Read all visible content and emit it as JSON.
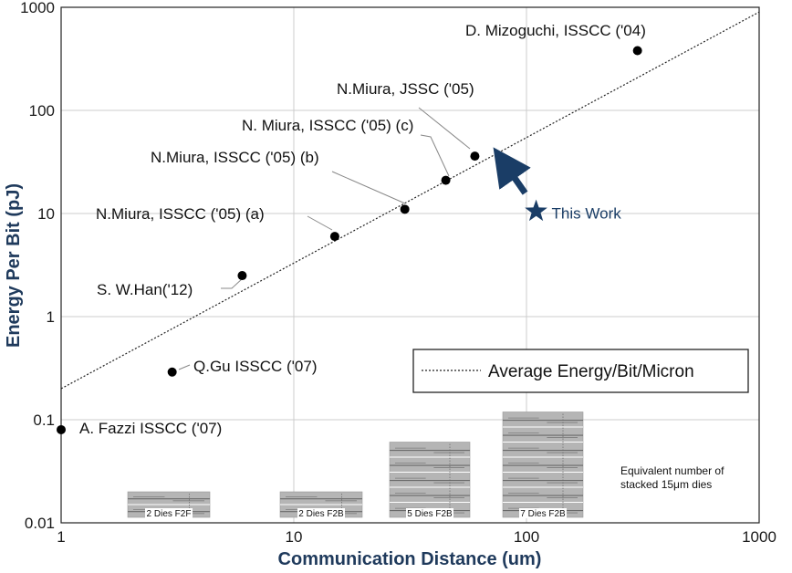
{
  "chart_data": {
    "type": "scatter",
    "xscale": "log",
    "yscale": "log",
    "xlim": [
      1,
      1000
    ],
    "ylim": [
      0.01,
      1000
    ],
    "grid": true,
    "xlabel": "Communication Distance (um)",
    "ylabel": "Energy Per Bit (pJ)",
    "xticks": [
      "1",
      "10",
      "100",
      "1000"
    ],
    "yticks": [
      "0.01",
      "0.1",
      "1",
      "10",
      "100",
      "1000"
    ],
    "points": [
      {
        "label": "A. Fazzi ISSCC ('07)",
        "x": 1,
        "y": 0.08
      },
      {
        "label": "Q.Gu ISSCC ('07)",
        "x": 3,
        "y": 0.29
      },
      {
        "label": "S. W.Han('12)",
        "x": 6,
        "y": 2.5
      },
      {
        "label": "N.Miura, ISSCC ('05) (a)",
        "x": 15,
        "y": 6
      },
      {
        "label": "N.Miura, ISSCC ('05) (b)",
        "x": 30,
        "y": 11
      },
      {
        "label": "N. Miura, ISSCC ('05) (c)",
        "x": 45,
        "y": 21
      },
      {
        "label": "N.Miura, JSSC ('05)",
        "x": 60,
        "y": 36
      },
      {
        "label": "D. Mizoguchi, ISSCC ('04)",
        "x": 300,
        "y": 380
      }
    ],
    "this_work": {
      "label": "This Work",
      "x": 110,
      "y": 10.5
    },
    "trend_line": {
      "name": "Average Energy/Bit/Micron",
      "x": [
        1,
        1000
      ],
      "y": [
        0.2,
        900
      ]
    },
    "legend": {
      "placement": "bottom-right",
      "entries": [
        "Average Energy/Bit/Micron"
      ]
    },
    "die_stacks": [
      {
        "label": "2 Dies F2F",
        "dies": 2
      },
      {
        "label": "2 Dies F2B",
        "dies": 2
      },
      {
        "label": "5 Dies F2B",
        "dies": 5
      },
      {
        "label": "7 Dies F2B",
        "dies": 7
      }
    ],
    "note": [
      "Equivalent number of",
      "stacked 15μm dies"
    ],
    "colors": {
      "axis_title": "#1f3a5c",
      "star": "#1a3d66",
      "arrow": "#1a3d66",
      "point": "#000000",
      "grid": "#cccccc",
      "die": "#b5b5b5"
    }
  }
}
